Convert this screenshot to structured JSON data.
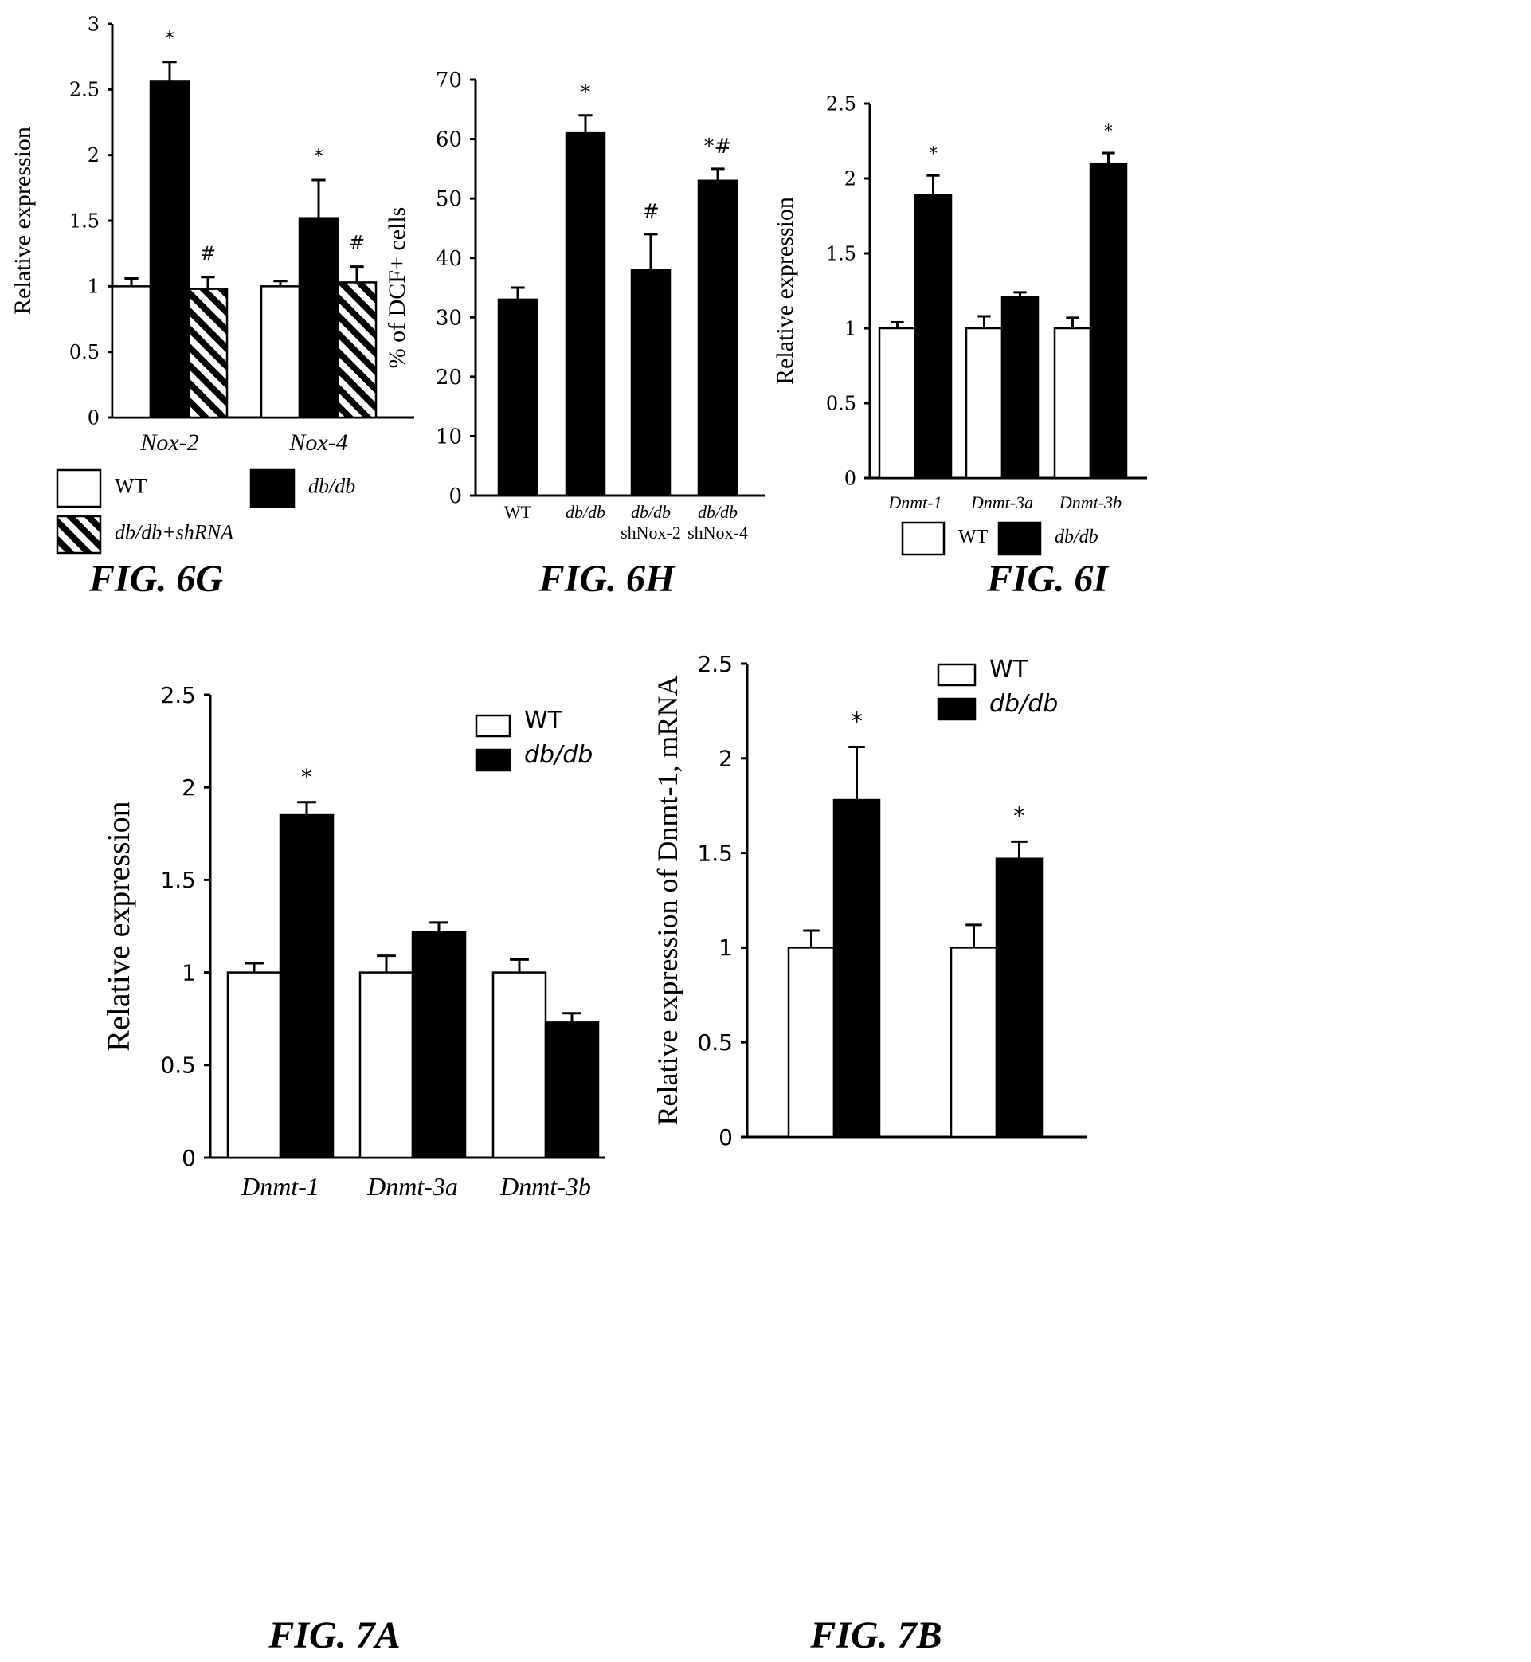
{
  "chart_data": [
    {
      "id": "6G",
      "type": "bar",
      "caption": "FIG. 6G",
      "ylabel": "Relative expression",
      "ylim": [
        0,
        3
      ],
      "yticks": [
        "0",
        "0.5",
        "1",
        "1.5",
        "2",
        "2.5",
        "3"
      ],
      "categories": [
        "Nox-2",
        "Nox-4"
      ],
      "series": [
        {
          "name": "WT",
          "fill": "white",
          "values": [
            1.0,
            1.0
          ],
          "errors": [
            0.06,
            0.04
          ],
          "marks": [
            "",
            ""
          ]
        },
        {
          "name": "db/db",
          "fill": "black",
          "values": [
            2.56,
            1.52
          ],
          "errors": [
            0.15,
            0.29
          ],
          "marks": [
            "*",
            "*"
          ]
        },
        {
          "name": "db/db+shRNA",
          "fill": "hatch",
          "values": [
            0.98,
            1.03
          ],
          "errors": [
            0.09,
            0.12
          ],
          "marks": [
            "#",
            "#"
          ]
        }
      ]
    },
    {
      "id": "6H",
      "type": "bar",
      "caption": "FIG. 6H",
      "ylabel": "% of DCF+ cells",
      "ylim": [
        0,
        70
      ],
      "yticks": [
        "0",
        "10",
        "20",
        "30",
        "40",
        "50",
        "60",
        "70"
      ],
      "categories": [
        [
          "WT"
        ],
        [
          "db/db"
        ],
        [
          "db/db",
          "shNox-2"
        ],
        [
          "db/db",
          "shNox-4"
        ]
      ],
      "series": [
        {
          "fill": "black",
          "values": [
            33,
            61,
            38,
            53
          ],
          "errors": [
            2,
            3,
            6,
            2
          ],
          "marks": [
            "",
            "*",
            "#",
            "*#"
          ]
        }
      ]
    },
    {
      "id": "6I",
      "type": "bar",
      "caption": "FIG. 6I",
      "ylabel": "Relative expression",
      "ylim": [
        0,
        2.5
      ],
      "yticks": [
        "0",
        "0.5",
        "1",
        "1.5",
        "2",
        "2.5"
      ],
      "categories": [
        "Dnmt-1",
        "Dnmt-3a",
        "Dnmt-3b"
      ],
      "series": [
        {
          "name": "WT",
          "fill": "white",
          "values": [
            1.0,
            1.0,
            1.0
          ],
          "errors": [
            0.04,
            0.08,
            0.07
          ],
          "marks": [
            "",
            "",
            ""
          ]
        },
        {
          "name": "db/db",
          "fill": "black",
          "values": [
            1.89,
            1.21,
            2.1
          ],
          "errors": [
            0.13,
            0.03,
            0.07
          ],
          "marks": [
            "*",
            "",
            "*"
          ]
        }
      ]
    },
    {
      "id": "7A",
      "type": "bar",
      "caption": "FIG. 7A",
      "ylabel": "Relative expression",
      "ylim": [
        0,
        2.5
      ],
      "yticks": [
        "0",
        "0.5",
        "1",
        "1.5",
        "2",
        "2.5"
      ],
      "categories": [
        "Dnmt-1",
        "Dnmt-3a",
        "Dnmt-3b"
      ],
      "series": [
        {
          "name": "WT",
          "fill": "white",
          "values": [
            1.0,
            1.0,
            1.0
          ],
          "errors": [
            0.05,
            0.09,
            0.07
          ],
          "marks": [
            "",
            "",
            ""
          ]
        },
        {
          "name": "db/db",
          "fill": "black",
          "values": [
            1.85,
            1.22,
            0.73
          ],
          "errors": [
            0.07,
            0.05,
            0.05
          ],
          "marks": [
            "*",
            "",
            ""
          ]
        }
      ]
    },
    {
      "id": "7B",
      "type": "bar",
      "caption": "FIG. 7B",
      "ylabel": "Relative expression of Dnmt-1, mRNA",
      "ylim": [
        0,
        2.5
      ],
      "yticks": [
        "0",
        "0.5",
        "1",
        "1.5",
        "2",
        "2.5"
      ],
      "categories": [
        "",
        ""
      ],
      "series": [
        {
          "name": "WT",
          "fill": "white",
          "values": [
            1.0,
            1.0
          ],
          "errors": [
            0.09,
            0.12
          ],
          "marks": [
            "",
            ""
          ]
        },
        {
          "name": "db/db",
          "fill": "black",
          "values": [
            1.78,
            1.47
          ],
          "errors": [
            0.28,
            0.09
          ],
          "marks": [
            "*",
            "*"
          ]
        }
      ]
    }
  ]
}
